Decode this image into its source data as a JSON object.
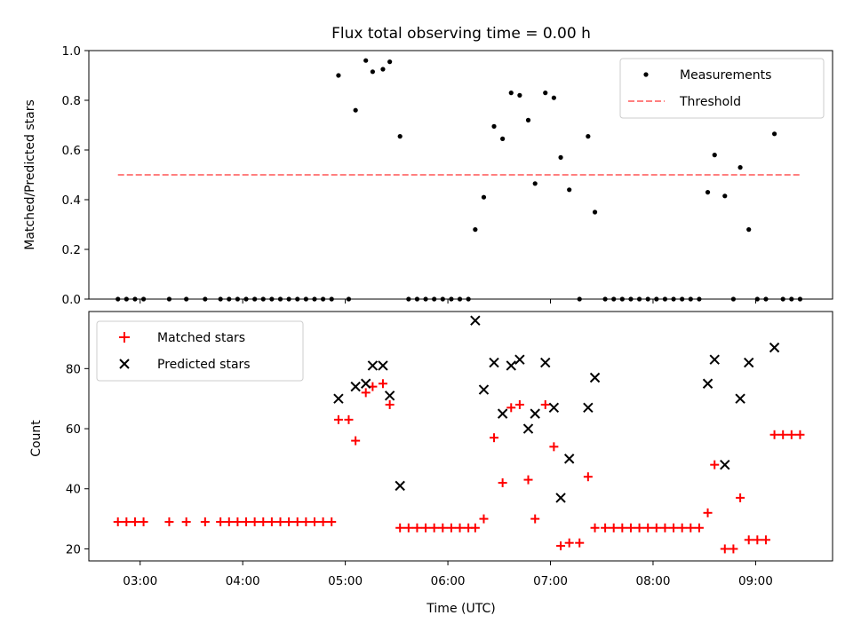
{
  "chart_data": [
    {
      "type": "scatter",
      "panel": "top",
      "title": "Flux total observing time = 0.00 h",
      "xlabel": "",
      "ylabel": "Matched/Predicted stars",
      "ylim": [
        0,
        1.0
      ],
      "yticks": [
        0.0,
        0.2,
        0.4,
        0.6,
        0.8,
        1.0
      ],
      "ytick_labels": [
        "0.0",
        "0.2",
        "0.4",
        "0.6",
        "0.8",
        "1.0"
      ],
      "xlim": [
        "02:30",
        "09:45"
      ],
      "legend_placement": "top-right",
      "series": [
        {
          "name": "Measurements",
          "marker": "dot",
          "color": "#000000",
          "points": [
            [
              "02:47",
              0
            ],
            [
              "02:52",
              0
            ],
            [
              "02:57",
              0
            ],
            [
              "03:02",
              0
            ],
            [
              "03:17",
              0
            ],
            [
              "03:27",
              0
            ],
            [
              "03:38",
              0
            ],
            [
              "03:47",
              0
            ],
            [
              "03:52",
              0
            ],
            [
              "03:57",
              0
            ],
            [
              "04:02",
              0
            ],
            [
              "04:07",
              0
            ],
            [
              "04:12",
              0
            ],
            [
              "04:17",
              0
            ],
            [
              "04:22",
              0
            ],
            [
              "04:27",
              0
            ],
            [
              "04:32",
              0
            ],
            [
              "04:37",
              0
            ],
            [
              "04:42",
              0
            ],
            [
              "04:47",
              0
            ],
            [
              "04:52",
              0
            ],
            [
              "04:56",
              0.9
            ],
            [
              "05:02",
              0
            ],
            [
              "05:06",
              0.76
            ],
            [
              "05:12",
              0.96
            ],
            [
              "05:16",
              0.915
            ],
            [
              "05:22",
              0.925
            ],
            [
              "05:26",
              0.955
            ],
            [
              "05:32",
              0.655
            ],
            [
              "05:37",
              0
            ],
            [
              "05:42",
              0
            ],
            [
              "05:47",
              0
            ],
            [
              "05:52",
              0
            ],
            [
              "05:57",
              0
            ],
            [
              "06:02",
              0
            ],
            [
              "06:07",
              0
            ],
            [
              "06:12",
              0
            ],
            [
              "06:16",
              0.28
            ],
            [
              "06:21",
              0.41
            ],
            [
              "06:27",
              0.695
            ],
            [
              "06:32",
              0.645
            ],
            [
              "06:37",
              0.83
            ],
            [
              "06:42",
              0.82
            ],
            [
              "06:47",
              0.72
            ],
            [
              "06:51",
              0.465
            ],
            [
              "06:57",
              0.83
            ],
            [
              "07:02",
              0.81
            ],
            [
              "07:06",
              0.57
            ],
            [
              "07:11",
              0.44
            ],
            [
              "07:17",
              0
            ],
            [
              "07:22",
              0.655
            ],
            [
              "07:26",
              0.35
            ],
            [
              "07:32",
              0
            ],
            [
              "07:37",
              0
            ],
            [
              "07:42",
              0
            ],
            [
              "07:47",
              0
            ],
            [
              "07:52",
              0
            ],
            [
              "07:57",
              0
            ],
            [
              "08:02",
              0
            ],
            [
              "08:07",
              0
            ],
            [
              "08:12",
              0
            ],
            [
              "08:17",
              0
            ],
            [
              "08:22",
              0
            ],
            [
              "08:27",
              0
            ],
            [
              "08:32",
              0.43
            ],
            [
              "08:36",
              0.58
            ],
            [
              "08:42",
              0.415
            ],
            [
              "08:47",
              0
            ],
            [
              "08:51",
              0.53
            ],
            [
              "08:56",
              0.28
            ],
            [
              "09:01",
              0
            ],
            [
              "09:06",
              0
            ],
            [
              "09:11",
              0.665
            ],
            [
              "09:16",
              0
            ],
            [
              "09:21",
              0
            ],
            [
              "09:26",
              0
            ]
          ]
        },
        {
          "name": "Threshold",
          "style": "dashed line",
          "color": "#ff7f7f",
          "points": [
            [
              "02:47",
              0.5
            ],
            [
              "09:27",
              0.5
            ]
          ]
        }
      ]
    },
    {
      "type": "scatter",
      "panel": "bottom",
      "title": "",
      "xlabel": "Time (UTC)",
      "ylabel": "Count",
      "ylim": [
        16,
        99
      ],
      "yticks": [
        20,
        40,
        60,
        80
      ],
      "ytick_labels": [
        "20",
        "40",
        "60",
        "80"
      ],
      "xlim": [
        "02:30",
        "09:45"
      ],
      "xticks": [
        "03:00",
        "04:00",
        "05:00",
        "06:00",
        "07:00",
        "08:00",
        "09:00"
      ],
      "legend_placement": "top-left",
      "series": [
        {
          "name": "Matched stars",
          "marker": "plus",
          "color": "#ff0000",
          "points": [
            [
              "02:47",
              29
            ],
            [
              "02:52",
              29
            ],
            [
              "02:57",
              29
            ],
            [
              "03:02",
              29
            ],
            [
              "03:17",
              29
            ],
            [
              "03:27",
              29
            ],
            [
              "03:38",
              29
            ],
            [
              "03:47",
              29
            ],
            [
              "03:52",
              29
            ],
            [
              "03:57",
              29
            ],
            [
              "04:02",
              29
            ],
            [
              "04:07",
              29
            ],
            [
              "04:12",
              29
            ],
            [
              "04:17",
              29
            ],
            [
              "04:22",
              29
            ],
            [
              "04:27",
              29
            ],
            [
              "04:32",
              29
            ],
            [
              "04:37",
              29
            ],
            [
              "04:42",
              29
            ],
            [
              "04:47",
              29
            ],
            [
              "04:52",
              29
            ],
            [
              "04:56",
              63
            ],
            [
              "05:02",
              63
            ],
            [
              "05:06",
              56
            ],
            [
              "05:12",
              72
            ],
            [
              "05:16",
              74
            ],
            [
              "05:22",
              75
            ],
            [
              "05:26",
              68
            ],
            [
              "05:32",
              27
            ],
            [
              "05:37",
              27
            ],
            [
              "05:42",
              27
            ],
            [
              "05:47",
              27
            ],
            [
              "05:52",
              27
            ],
            [
              "05:57",
              27
            ],
            [
              "06:02",
              27
            ],
            [
              "06:07",
              27
            ],
            [
              "06:12",
              27
            ],
            [
              "06:16",
              27
            ],
            [
              "06:21",
              30
            ],
            [
              "06:27",
              57
            ],
            [
              "06:32",
              42
            ],
            [
              "06:37",
              67
            ],
            [
              "06:42",
              68
            ],
            [
              "06:47",
              43
            ],
            [
              "06:51",
              30
            ],
            [
              "06:57",
              68
            ],
            [
              "07:02",
              54
            ],
            [
              "07:06",
              21
            ],
            [
              "07:11",
              22
            ],
            [
              "07:17",
              22
            ],
            [
              "07:22",
              44
            ],
            [
              "07:26",
              27
            ],
            [
              "07:32",
              27
            ],
            [
              "07:37",
              27
            ],
            [
              "07:42",
              27
            ],
            [
              "07:47",
              27
            ],
            [
              "07:52",
              27
            ],
            [
              "07:57",
              27
            ],
            [
              "08:02",
              27
            ],
            [
              "08:07",
              27
            ],
            [
              "08:12",
              27
            ],
            [
              "08:17",
              27
            ],
            [
              "08:22",
              27
            ],
            [
              "08:27",
              27
            ],
            [
              "08:32",
              32
            ],
            [
              "08:36",
              48
            ],
            [
              "08:42",
              20
            ],
            [
              "08:47",
              20
            ],
            [
              "08:51",
              37
            ],
            [
              "08:56",
              23
            ],
            [
              "09:01",
              23
            ],
            [
              "09:06",
              23
            ],
            [
              "09:11",
              58
            ],
            [
              "09:16",
              58
            ],
            [
              "09:21",
              58
            ],
            [
              "09:26",
              58
            ]
          ]
        },
        {
          "name": "Predicted stars",
          "marker": "x",
          "color": "#000000",
          "points": [
            [
              "04:56",
              70
            ],
            [
              "05:06",
              74
            ],
            [
              "05:12",
              75
            ],
            [
              "05:16",
              81
            ],
            [
              "05:22",
              81
            ],
            [
              "05:26",
              71
            ],
            [
              "05:32",
              41
            ],
            [
              "06:16",
              96
            ],
            [
              "06:21",
              73
            ],
            [
              "06:27",
              82
            ],
            [
              "06:32",
              65
            ],
            [
              "06:37",
              81
            ],
            [
              "06:42",
              83
            ],
            [
              "06:47",
              60
            ],
            [
              "06:51",
              65
            ],
            [
              "06:57",
              82
            ],
            [
              "07:02",
              67
            ],
            [
              "07:06",
              37
            ],
            [
              "07:11",
              50
            ],
            [
              "07:22",
              67
            ],
            [
              "07:26",
              77
            ],
            [
              "08:32",
              75
            ],
            [
              "08:36",
              83
            ],
            [
              "08:42",
              48
            ],
            [
              "08:51",
              70
            ],
            [
              "08:56",
              82
            ],
            [
              "09:11",
              87
            ]
          ]
        }
      ]
    }
  ]
}
